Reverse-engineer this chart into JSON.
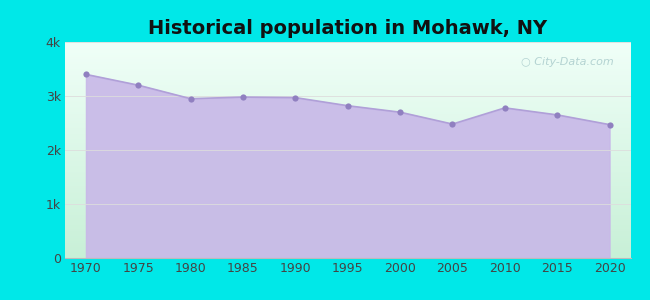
{
  "title": "Historical population in Mohawk, NY",
  "years": [
    1970,
    1975,
    1980,
    1985,
    1990,
    1995,
    2000,
    2005,
    2010,
    2015,
    2020
  ],
  "population": [
    3400,
    3200,
    2950,
    2980,
    2970,
    2820,
    2700,
    2480,
    2780,
    2650,
    2470
  ],
  "ylim": [
    0,
    4000
  ],
  "yticks": [
    0,
    1000,
    2000,
    3000,
    4000
  ],
  "ytick_labels": [
    "0",
    "1k",
    "2k",
    "3k",
    "4k"
  ],
  "xticks": [
    1970,
    1975,
    1980,
    1985,
    1990,
    1995,
    2000,
    2005,
    2010,
    2015,
    2020
  ],
  "bg_outer": "#00e8e8",
  "fill_color": "#c8b8e8",
  "line_color": "#b0a0d8",
  "dot_color": "#9080c0",
  "title_color": "#111111",
  "title_fontsize": 14,
  "tick_fontsize": 9,
  "tick_color": "#444444",
  "watermark_text": "City-Data.com",
  "watermark_color": "#aacccc",
  "xlim_left": 1968,
  "xlim_right": 2022,
  "grid_color": "#dddddd",
  "bg_top_color": "#f0fff8",
  "bg_bottom_color": "#d8f5e8"
}
